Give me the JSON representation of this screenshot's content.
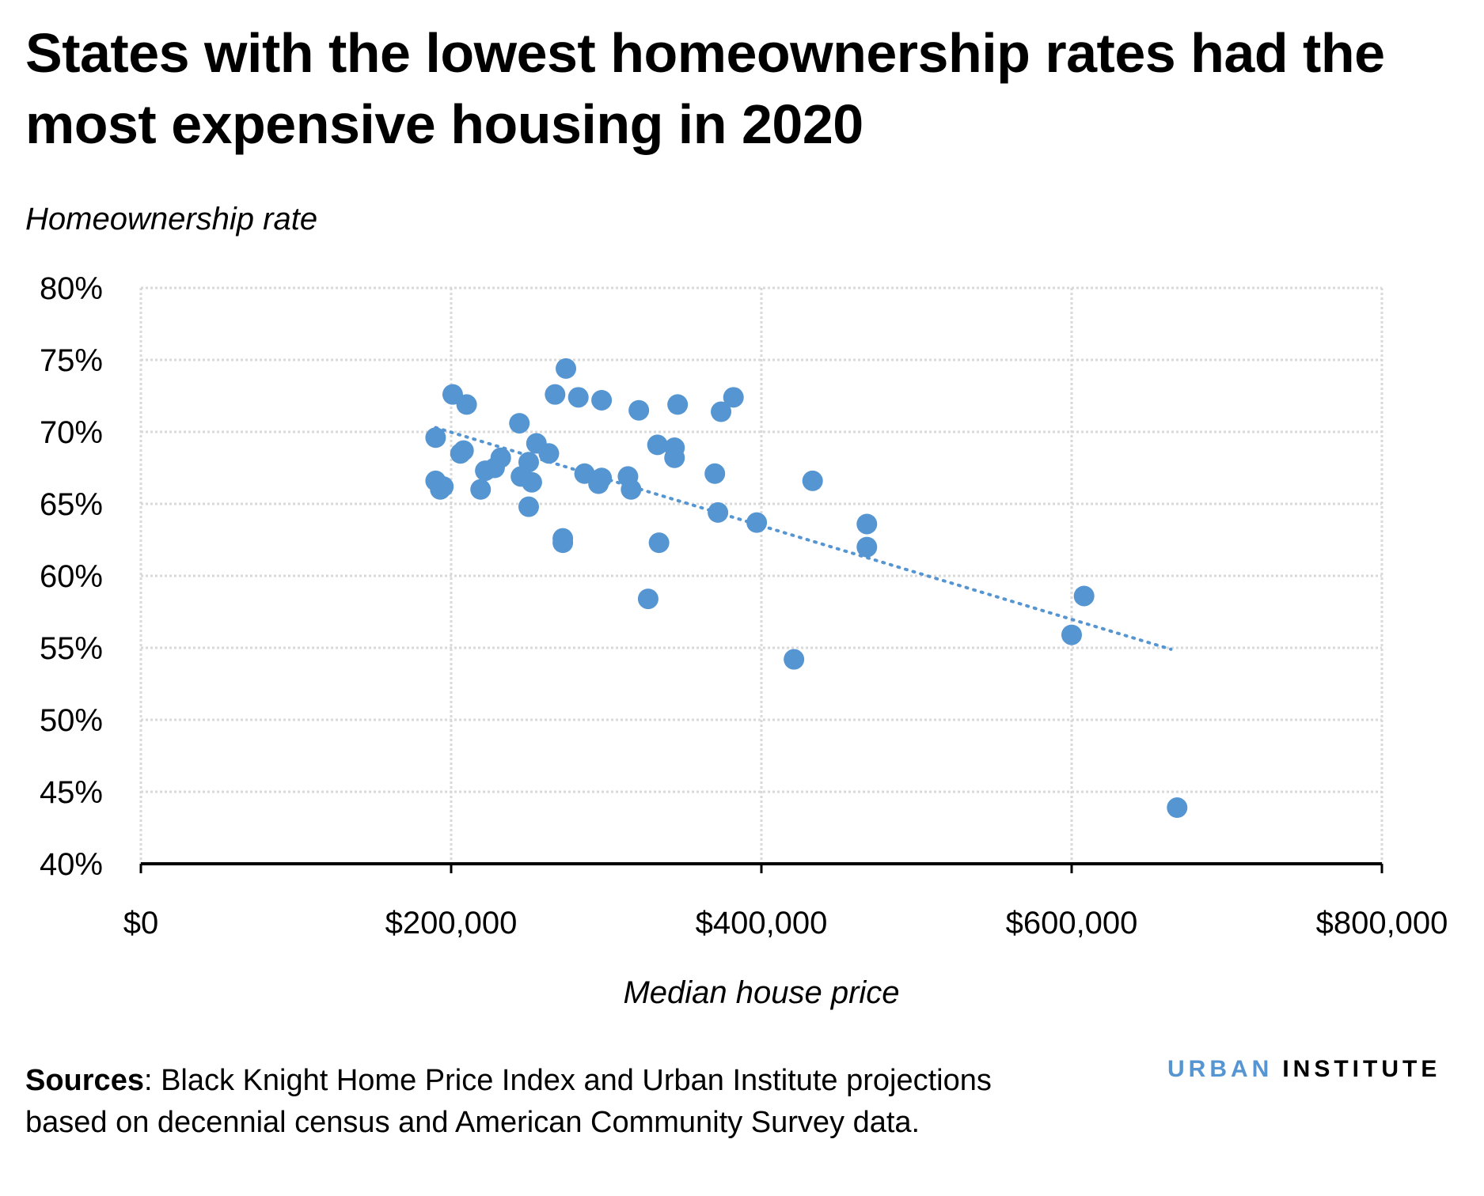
{
  "title": "States with the lowest homeownership rates had the most expensive housing in 2020",
  "sources": {
    "label": "Sources",
    "text": ": Black Knight Home Price Index and Urban Institute projections based on decennial census and American Community Survey data."
  },
  "logo": {
    "part1": "URBAN",
    "part2": "INSTITUTE"
  },
  "colors": {
    "points": "#5595d1",
    "trendline": "#5595d1",
    "grid": "#d9d9d9",
    "axis": "#000000"
  },
  "chart_data": {
    "type": "scatter",
    "title": "States with the lowest homeownership rates had the most expensive housing in 2020",
    "xlabel": "Median house price",
    "ylabel": "Homeownership rate",
    "xlim": [
      0,
      800000
    ],
    "ylim": [
      40,
      80
    ],
    "grid": true,
    "x_ticks": [
      0,
      200000,
      400000,
      600000,
      800000
    ],
    "x_tick_labels": [
      "$0",
      "$200,000",
      "$400,000",
      "$600,000",
      "$800,000"
    ],
    "y_ticks": [
      40,
      45,
      50,
      55,
      60,
      65,
      70,
      75,
      80
    ],
    "y_tick_labels": [
      "40%",
      "45%",
      "50%",
      "55%",
      "60%",
      "65%",
      "70%",
      "75%",
      "80%"
    ],
    "points": [
      [
        201000,
        72.6
      ],
      [
        210000,
        71.9
      ],
      [
        190000,
        69.6
      ],
      [
        190000,
        66.6
      ],
      [
        193000,
        66.0
      ],
      [
        195000,
        66.2
      ],
      [
        206000,
        68.5
      ],
      [
        208000,
        68.7
      ],
      [
        219000,
        66.0
      ],
      [
        222000,
        67.3
      ],
      [
        228000,
        67.5
      ],
      [
        232000,
        68.2
      ],
      [
        244000,
        70.6
      ],
      [
        245000,
        66.9
      ],
      [
        250000,
        67.9
      ],
      [
        252000,
        66.5
      ],
      [
        255000,
        69.2
      ],
      [
        263000,
        68.5
      ],
      [
        250000,
        64.8
      ],
      [
        267000,
        72.6
      ],
      [
        274000,
        74.4
      ],
      [
        282000,
        72.4
      ],
      [
        272000,
        62.6
      ],
      [
        272000,
        62.3
      ],
      [
        286000,
        67.1
      ],
      [
        295000,
        66.4
      ],
      [
        297000,
        66.8
      ],
      [
        297000,
        72.2
      ],
      [
        314000,
        66.9
      ],
      [
        316000,
        66.0
      ],
      [
        321000,
        71.5
      ],
      [
        327000,
        58.4
      ],
      [
        333000,
        69.1
      ],
      [
        334000,
        62.3
      ],
      [
        344000,
        68.9
      ],
      [
        344000,
        68.2
      ],
      [
        346000,
        71.9
      ],
      [
        370000,
        67.1
      ],
      [
        374000,
        71.4
      ],
      [
        382000,
        72.4
      ],
      [
        372000,
        64.4
      ],
      [
        397000,
        63.7
      ],
      [
        421000,
        54.2
      ],
      [
        433000,
        66.6
      ],
      [
        468000,
        63.6
      ],
      [
        468000,
        62.0
      ],
      [
        600000,
        55.9
      ],
      [
        608000,
        58.6
      ],
      [
        668000,
        43.9
      ]
    ],
    "trendline": {
      "type": "linear",
      "x": [
        190000,
        664000
      ],
      "y": [
        70.3,
        54.9
      ]
    }
  }
}
